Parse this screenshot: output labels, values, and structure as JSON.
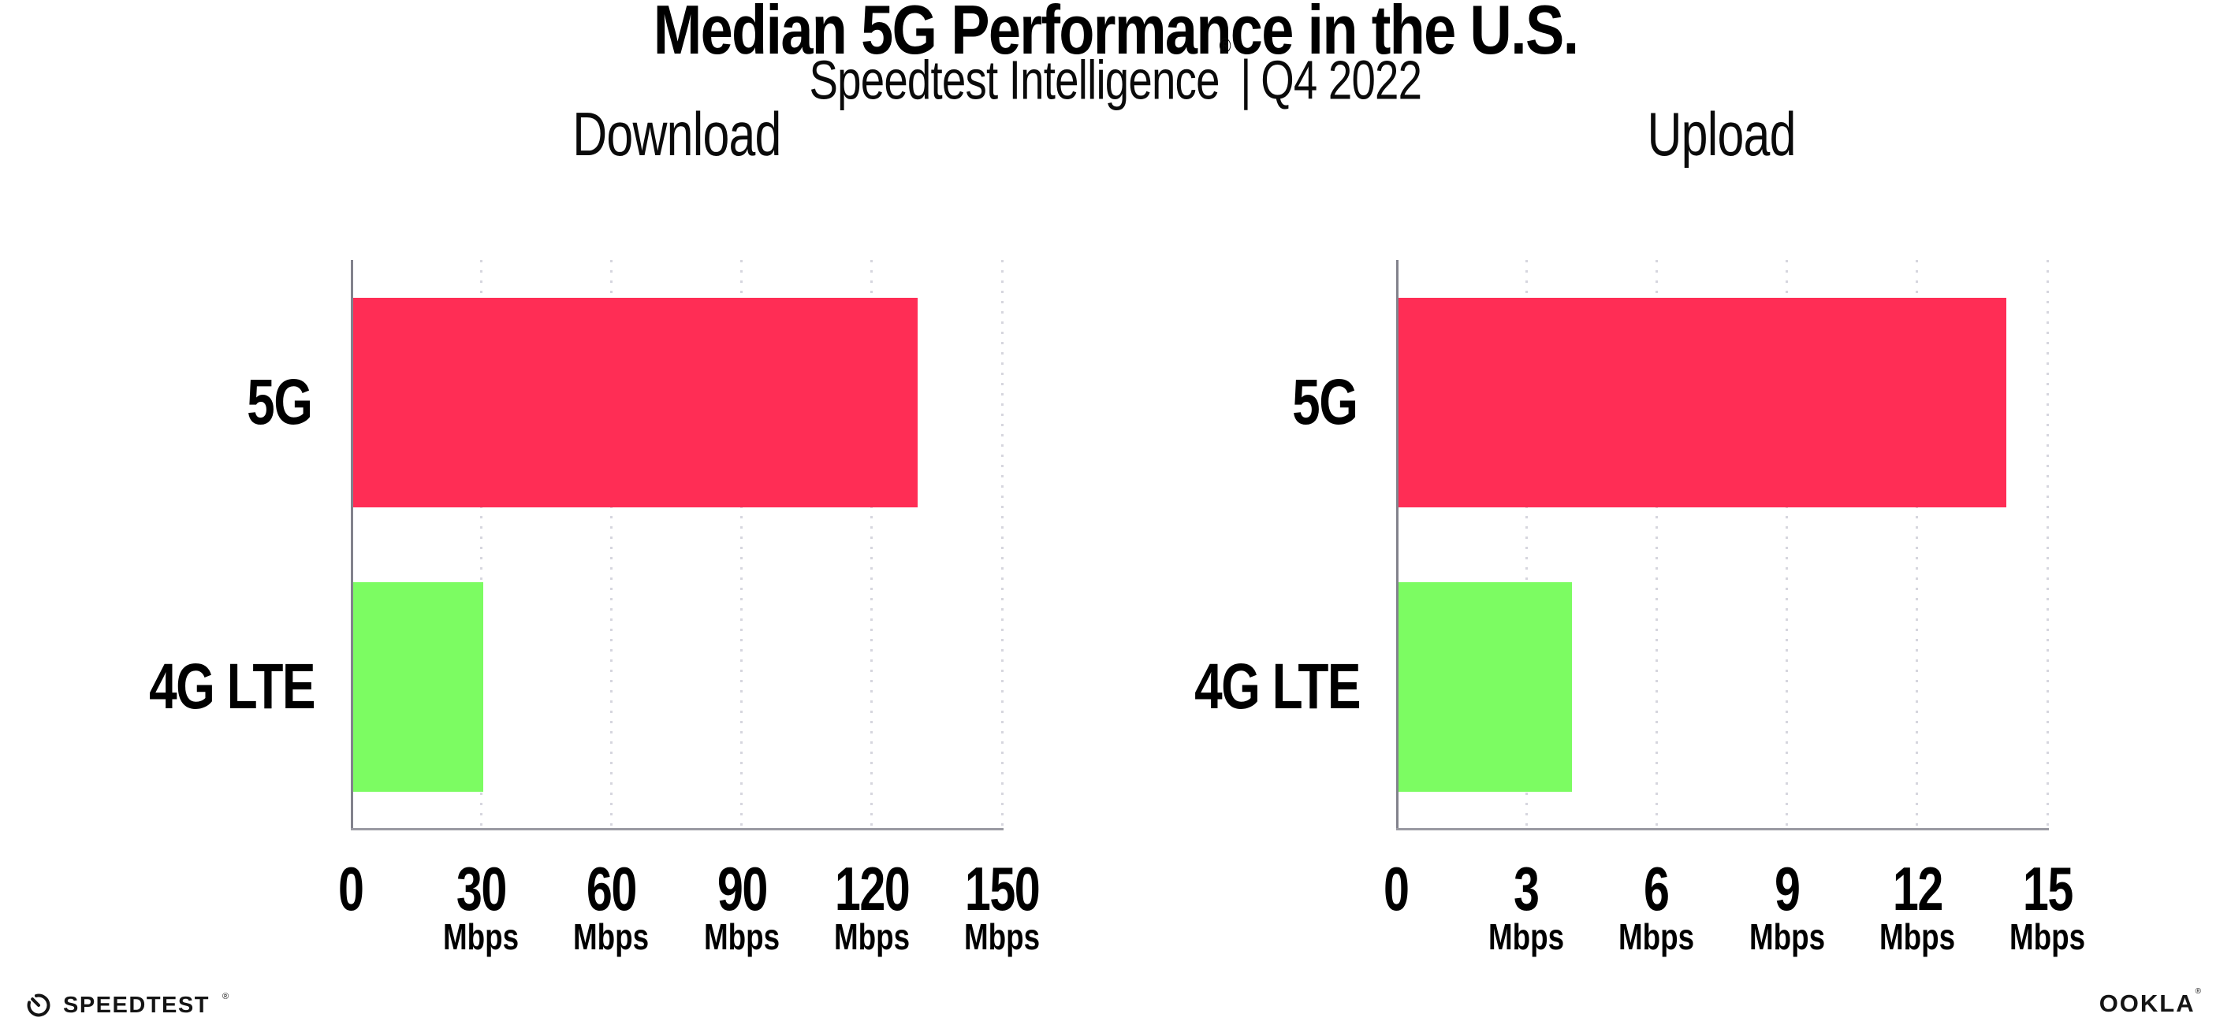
{
  "header": {
    "title": "Median 5G Performance in the U.S.",
    "subtitle_brand": "Speedtest Intelligence",
    "subtitle_reg": "®",
    "subtitle_sep": "|",
    "subtitle_period": "Q4 2022"
  },
  "chart_data": [
    {
      "type": "bar",
      "orientation": "horizontal",
      "title": "Download",
      "categories": [
        "5G",
        "4G LTE"
      ],
      "values": [
        130,
        30
      ],
      "unit": "Mbps",
      "xlim": [
        0,
        150
      ],
      "ticks": [
        0,
        30,
        60,
        90,
        120,
        150
      ],
      "colors": [
        "#FF2D55",
        "#7CFC62"
      ],
      "grid": "dotted-vertical-gridlines",
      "legend": "none"
    },
    {
      "type": "bar",
      "orientation": "horizontal",
      "title": "Upload",
      "categories": [
        "5G",
        "4G LTE"
      ],
      "values": [
        14,
        4
      ],
      "unit": "Mbps",
      "xlim": [
        0,
        15
      ],
      "ticks": [
        0,
        3,
        6,
        9,
        12,
        15
      ],
      "colors": [
        "#FF2D55",
        "#7CFC62"
      ],
      "grid": "dotted-vertical-gridlines",
      "legend": "none"
    }
  ],
  "footer": {
    "speedtest_text": "SPEEDTEST",
    "speedtest_reg": "®",
    "ookla_text": "OOKLA",
    "ookla_reg": "®"
  },
  "colors": {
    "bar_5g": "#FF2D55",
    "bar_4g_lte": "#7CFC62",
    "y_axis": "#82828c",
    "x_axis": "#9a9aa2",
    "gridline": "#d6d6de",
    "text": "#000000"
  }
}
